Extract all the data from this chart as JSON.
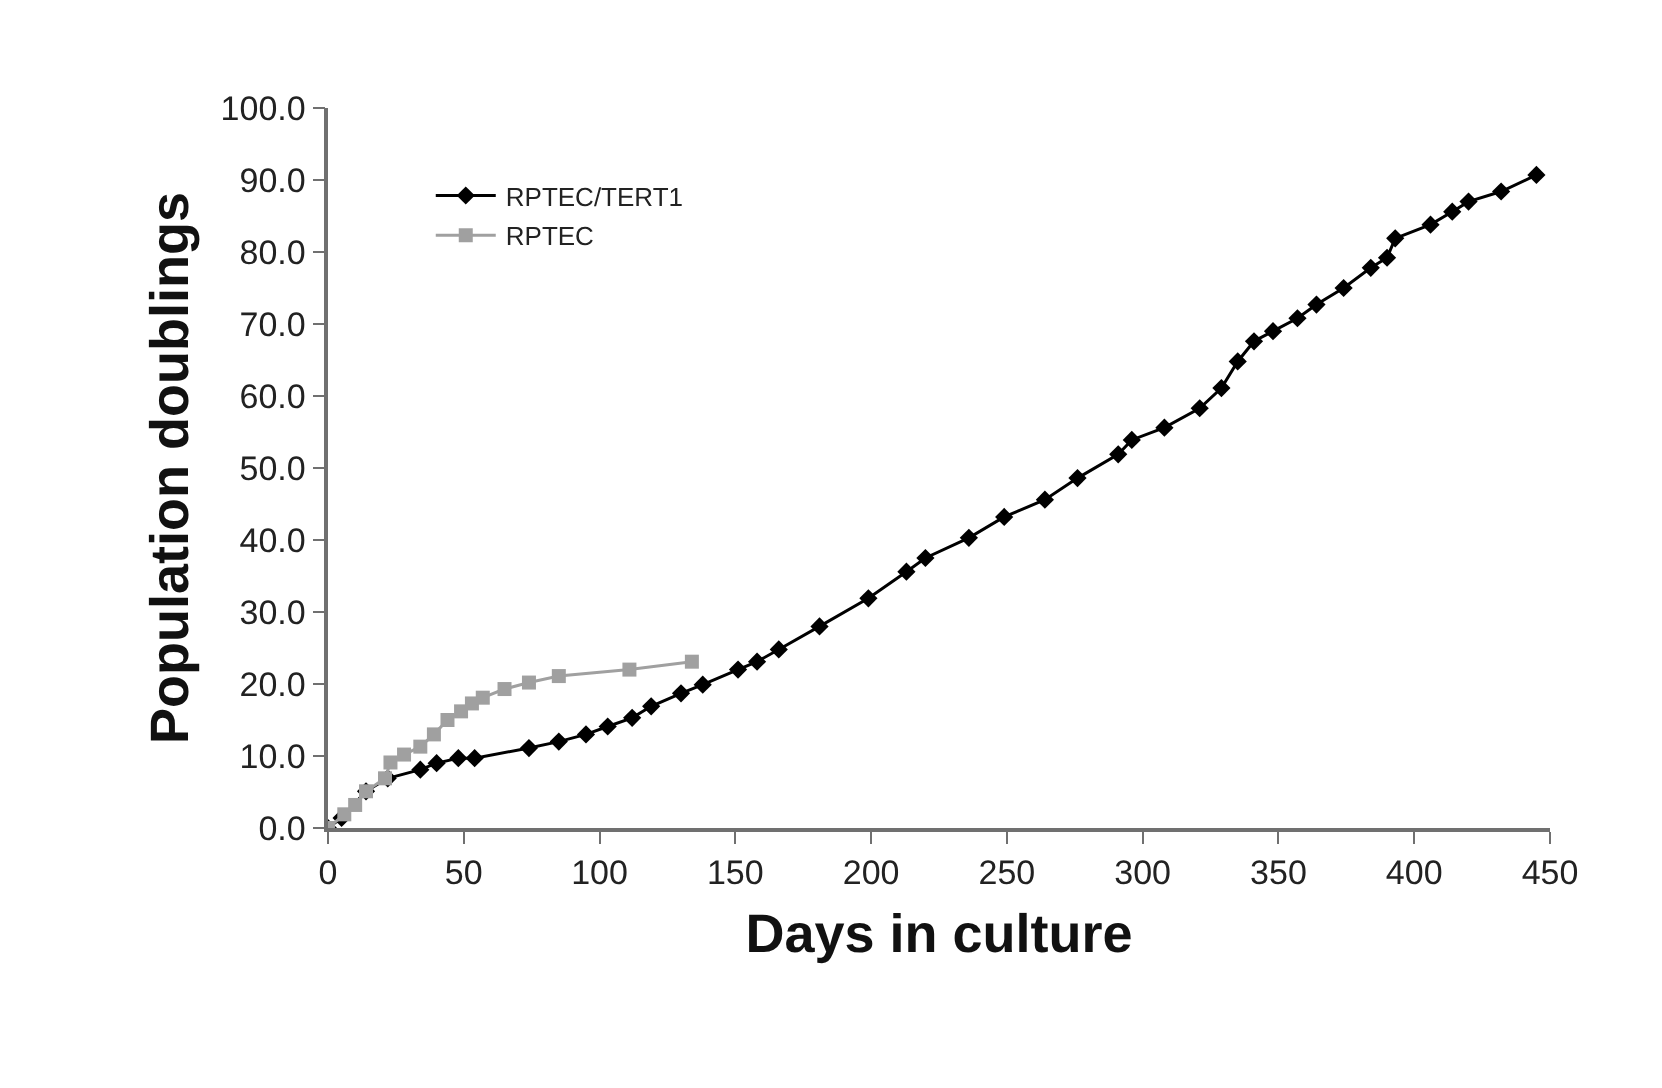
{
  "chart_data": {
    "type": "line",
    "xlabel": "Days in culture",
    "ylabel": "Population doublings",
    "xlim": [
      0,
      450
    ],
    "xticks": [
      0,
      50,
      100,
      150,
      200,
      250,
      300,
      350,
      400,
      450
    ],
    "ylim": [
      0,
      100
    ],
    "yticks": [
      {
        "value": 0,
        "label": "0.0"
      },
      {
        "value": 10,
        "label": "10.0"
      },
      {
        "value": 20,
        "label": "20.0"
      },
      {
        "value": 30,
        "label": "30.0"
      },
      {
        "value": 40,
        "label": "40.0"
      },
      {
        "value": 50,
        "label": "50.0"
      },
      {
        "value": 60,
        "label": "60.0"
      },
      {
        "value": 70,
        "label": "70.0"
      },
      {
        "value": 80,
        "label": "80.0"
      },
      {
        "value": 90,
        "label": "90.0"
      },
      {
        "value": 100,
        "label": "100.0"
      }
    ],
    "grid": false,
    "legend": "top left",
    "line_style": "solid",
    "series": [
      {
        "name": "RPTEC/TERT1",
        "color": "#000000",
        "marker": "diamond",
        "x": [
          0,
          5,
          14,
          22,
          34,
          40,
          48,
          54,
          74,
          85,
          95,
          103,
          112,
          119,
          130,
          138,
          151,
          158,
          166,
          181,
          199,
          213,
          220,
          236,
          249,
          264,
          276,
          291,
          296,
          308,
          321,
          329,
          335,
          341,
          348,
          357,
          364,
          374,
          384,
          390,
          393,
          406,
          414,
          420,
          432,
          445
        ],
        "values": [
          0,
          1.4,
          5.1,
          6.9,
          8.1,
          9.0,
          9.7,
          9.7,
          11.1,
          12.0,
          13.0,
          14.1,
          15.3,
          16.9,
          18.7,
          19.9,
          22.0,
          23.1,
          24.8,
          28.0,
          31.9,
          35.6,
          37.5,
          40.3,
          43.2,
          45.6,
          48.6,
          51.9,
          53.9,
          55.6,
          58.3,
          61.1,
          64.8,
          67.6,
          69.0,
          70.8,
          72.7,
          75.0,
          77.8,
          79.2,
          81.9,
          83.8,
          85.6,
          87.0,
          88.4,
          90.7
        ]
      },
      {
        "name": "RPTEC",
        "color": "#a0a0a0",
        "marker": "square",
        "x": [
          0,
          6,
          10,
          14,
          21,
          23,
          28,
          34,
          39,
          44,
          49,
          53,
          57,
          65,
          74,
          85,
          111,
          134
        ],
        "values": [
          0,
          1.9,
          3.2,
          5.1,
          6.9,
          9.1,
          10.2,
          11.3,
          13.0,
          15.0,
          16.2,
          17.3,
          18.1,
          19.3,
          20.2,
          21.1,
          22.0,
          23.1
        ]
      }
    ]
  }
}
